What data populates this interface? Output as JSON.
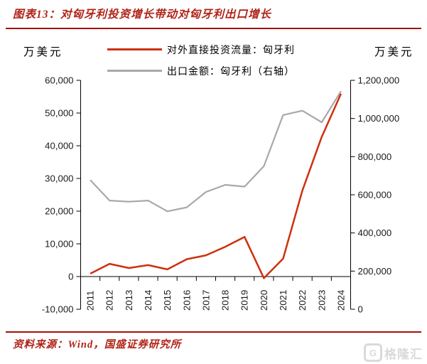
{
  "header": {
    "title": "图表13：对匈牙利投资增长带动对匈牙利出口增长"
  },
  "legend": {
    "items": [
      {
        "label": "对外直接投资流量：匈牙利",
        "color": "#CE300D"
      },
      {
        "label": "出口金额：匈牙利（右轴）",
        "color": "#A8A8A8"
      }
    ]
  },
  "chart_data": {
    "type": "line",
    "categories": [
      "2011",
      "2012",
      "2013",
      "2014",
      "2015",
      "2016",
      "2017",
      "2018",
      "2019",
      "2020",
      "2021",
      "2022",
      "2023",
      "2024"
    ],
    "series": [
      {
        "name": "对外直接投资流量：匈牙利",
        "axis": "left",
        "color": "#CE300D",
        "values": [
          900,
          3900,
          2600,
          3500,
          2200,
          5300,
          6500,
          9100,
          12100,
          -500,
          5500,
          26300,
          42700,
          55900
        ]
      },
      {
        "name": "出口金额：匈牙利（右轴）",
        "axis": "right",
        "color": "#A8A8A8",
        "values": [
          677000,
          570000,
          564000,
          570000,
          513000,
          534000,
          615000,
          652000,
          643000,
          750000,
          1018000,
          1041000,
          980000,
          1143000
        ]
      }
    ],
    "left_axis": {
      "label": "万美元",
      "min": -10000,
      "max": 60000,
      "step": 10000,
      "tick_labels": [
        "-10,000",
        "0",
        "10,000",
        "20,000",
        "30,000",
        "40,000",
        "50,000",
        "60,000"
      ]
    },
    "right_axis": {
      "label": "万美元",
      "min": 0,
      "max": 1200000,
      "step": 200000,
      "tick_labels": [
        "0",
        "200,000",
        "400,000",
        "600,000",
        "800,000",
        "1,000,000",
        "1,200,000"
      ]
    },
    "grid": false,
    "legend_position": "top-center"
  },
  "footer": {
    "source": "资料来源：Wind，国盛证券研究所"
  },
  "watermark": {
    "icon": "G",
    "text": "格隆汇"
  }
}
